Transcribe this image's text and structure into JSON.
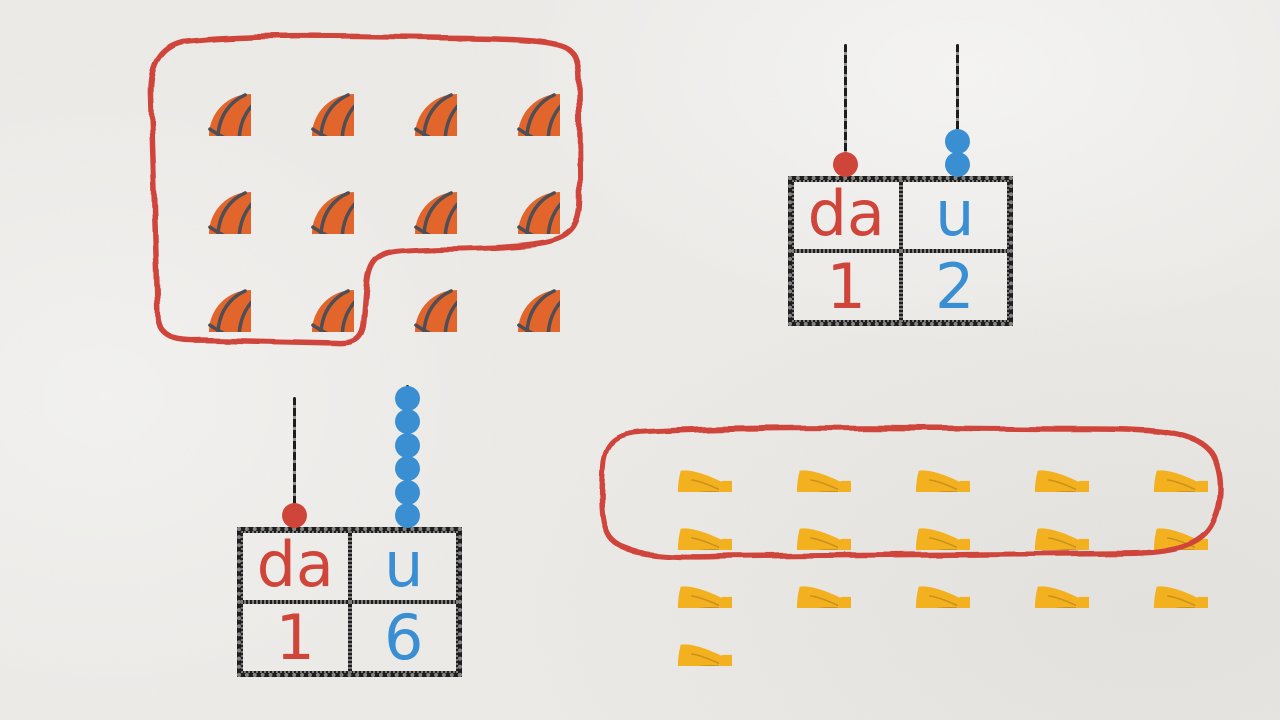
{
  "colors": {
    "paper": "#edece9",
    "ink": "#1d1d1d",
    "red": "#d0453a",
    "blue": "#3a8fd3",
    "ball": "#e2662b",
    "ball_shade": "#bf5617",
    "seam": "#4e4e57",
    "bow": "#f3b01f",
    "bow_crease": "#c8911e"
  },
  "basketballs": {
    "icon": "basketball",
    "total": 12,
    "circled": 10,
    "grid_rows": [
      4,
      4,
      4
    ]
  },
  "basketball_table": {
    "tens_label": "da",
    "units_label": "u",
    "tens_value": "1",
    "units_value": "2",
    "tens_beads": 1,
    "units_beads": 2
  },
  "bowties": {
    "icon": "bow-tie",
    "total": 16,
    "circled": 10,
    "grid_rows": [
      5,
      5,
      5,
      1
    ]
  },
  "bowtie_table": {
    "tens_label": "da",
    "units_label": "u",
    "tens_value": "1",
    "units_value": "6",
    "tens_beads": 1,
    "units_beads": 6
  }
}
